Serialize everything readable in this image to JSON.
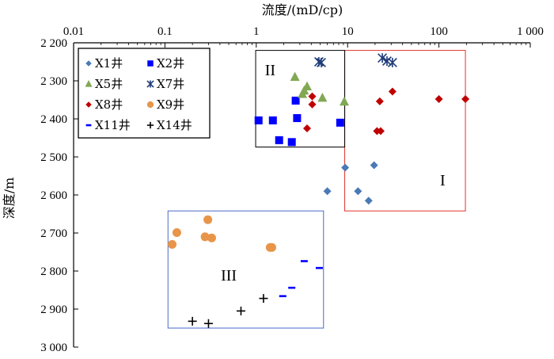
{
  "chart_data": {
    "type": "scatter",
    "xlabel": "流度/(mD/cp)",
    "ylabel": "深度/m",
    "x_scale": "log",
    "xlim": [
      0.01,
      1000
    ],
    "ylim": [
      2200,
      3000
    ],
    "x_ticks": [
      "0.01",
      "0.1",
      "1",
      "10",
      "100",
      "1 000"
    ],
    "y_ticks": [
      "2 200",
      "2 300",
      "2 400",
      "2 500",
      "2 600",
      "2 700",
      "2 800",
      "2 900",
      "3 000"
    ],
    "series": [
      {
        "name": "X1井",
        "color": "#4a7ab5",
        "marker": "diamond",
        "points": [
          [
            9.4,
            2528
          ],
          [
            19.5,
            2522
          ],
          [
            6.0,
            2590
          ],
          [
            13.0,
            2590
          ],
          [
            17.0,
            2615
          ]
        ]
      },
      {
        "name": "X2井",
        "color": "#0000ff",
        "marker": "square",
        "points": [
          [
            2.7,
            2352
          ],
          [
            1.06,
            2404
          ],
          [
            1.52,
            2404
          ],
          [
            2.8,
            2398
          ],
          [
            8.3,
            2410
          ],
          [
            1.78,
            2456
          ],
          [
            2.45,
            2461
          ]
        ]
      },
      {
        "name": "X5井",
        "color": "#82a854",
        "marker": "triangle",
        "points": [
          [
            2.65,
            2290
          ],
          [
            3.6,
            2315
          ],
          [
            3.35,
            2326
          ],
          [
            3.2,
            2335
          ],
          [
            5.3,
            2345
          ],
          [
            9.2,
            2355
          ]
        ]
      },
      {
        "name": "X7井",
        "color": "#1e3c78",
        "marker": "asterisk",
        "points": [
          [
            4.85,
            2250
          ],
          [
            5.15,
            2252
          ],
          [
            24.0,
            2240
          ],
          [
            27.0,
            2248
          ],
          [
            31.0,
            2252
          ]
        ]
      },
      {
        "name": "X8井",
        "color": "#c00000",
        "marker": "diamond",
        "points": [
          [
            4.1,
            2341
          ],
          [
            4.1,
            2362
          ],
          [
            3.6,
            2425
          ],
          [
            31.0,
            2328
          ],
          [
            22.5,
            2354
          ],
          [
            100.0,
            2348
          ],
          [
            195.0,
            2348
          ],
          [
            21.0,
            2432
          ],
          [
            23.0,
            2432
          ]
        ]
      },
      {
        "name": "X9井",
        "color": "#e8954a",
        "marker": "circle",
        "points": [
          [
            0.295,
            2665
          ],
          [
            0.135,
            2699
          ],
          [
            0.275,
            2710
          ],
          [
            0.325,
            2713
          ],
          [
            0.12,
            2730
          ],
          [
            1.42,
            2738
          ],
          [
            1.48,
            2738
          ]
        ]
      },
      {
        "name": "X11井",
        "color": "#0000ff",
        "marker": "dash",
        "points": [
          [
            3.35,
            2774
          ],
          [
            4.9,
            2792
          ],
          [
            2.45,
            2844
          ],
          [
            1.95,
            2866
          ]
        ]
      },
      {
        "name": "X14井",
        "color": "#000000",
        "marker": "plus",
        "points": [
          [
            1.2,
            2872
          ],
          [
            0.68,
            2905
          ],
          [
            0.2,
            2932
          ],
          [
            0.3,
            2938
          ]
        ]
      }
    ],
    "regions": [
      {
        "label": "I",
        "color": "#e0342a",
        "x_range": [
          9.3,
          195
        ],
        "y_range": [
          2220,
          2642
        ],
        "label_at": [
          110,
          2560
        ]
      },
      {
        "label": "II",
        "color": "#000000",
        "x_range": [
          0.985,
          9.3
        ],
        "y_range": [
          2220,
          2474
        ],
        "label_at": [
          1.42,
          2271
        ]
      },
      {
        "label": "III",
        "color": "#4a69c8",
        "x_range": [
          0.108,
          5.45
        ],
        "y_range": [
          2642,
          2950
        ],
        "label_at": [
          0.5,
          2810
        ]
      }
    ],
    "legend_position": "top-left"
  }
}
